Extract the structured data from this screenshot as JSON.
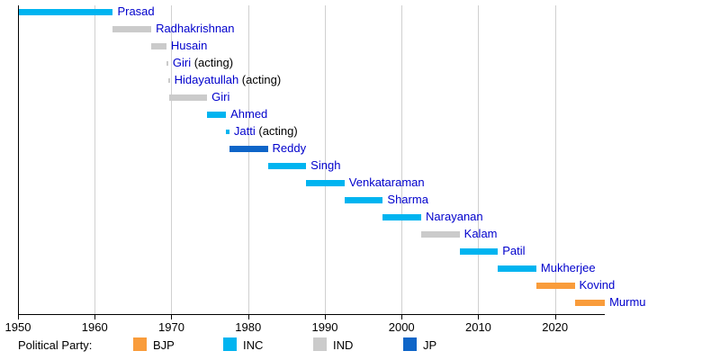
{
  "chart_data": {
    "type": "gantt-timeline",
    "description": "Timeline of term bars with names, colored by political party",
    "x_axis": {
      "min": 1950,
      "max": 2026.5,
      "ticks": [
        1950,
        1960,
        1970,
        1980,
        1990,
        2000,
        2010,
        2020
      ],
      "grid": true
    },
    "party_colors": {
      "BJP": "#f99c3b",
      "INC": "#00b4f0",
      "IND": "#cbcbcb",
      "JP": "#0e65c8"
    },
    "bars": [
      {
        "label": "Prasad",
        "suffix": "",
        "party": "INC",
        "start": 1950.07,
        "end": 1962.37
      },
      {
        "label": "Radhakrishnan",
        "suffix": "",
        "party": "IND",
        "start": 1962.37,
        "end": 1967.37
      },
      {
        "label": "Husain",
        "suffix": "",
        "party": "IND",
        "start": 1967.37,
        "end": 1969.34
      },
      {
        "label": "Giri",
        "suffix": " (acting)",
        "party": "IND",
        "start": 1969.34,
        "end": 1969.55
      },
      {
        "label": "Hidayatullah",
        "suffix": " (acting)",
        "party": "IND",
        "start": 1969.55,
        "end": 1969.65
      },
      {
        "label": "Giri",
        "suffix": "",
        "party": "IND",
        "start": 1969.65,
        "end": 1974.65
      },
      {
        "label": "Ahmed",
        "suffix": "",
        "party": "INC",
        "start": 1974.65,
        "end": 1977.11
      },
      {
        "label": "Jatti",
        "suffix": " (acting)",
        "party": "INC",
        "start": 1977.11,
        "end": 1977.56
      },
      {
        "label": "Reddy",
        "suffix": "",
        "party": "JP",
        "start": 1977.56,
        "end": 1982.56
      },
      {
        "label": "Singh",
        "suffix": "",
        "party": "INC",
        "start": 1982.56,
        "end": 1987.56
      },
      {
        "label": "Venkataraman",
        "suffix": "",
        "party": "INC",
        "start": 1987.56,
        "end": 1992.56
      },
      {
        "label": "Sharma",
        "suffix": "",
        "party": "INC",
        "start": 1992.56,
        "end": 1997.56
      },
      {
        "label": "Narayanan",
        "suffix": "",
        "party": "INC",
        "start": 1997.56,
        "end": 2002.56
      },
      {
        "label": "Kalam",
        "suffix": "",
        "party": "IND",
        "start": 2002.56,
        "end": 2007.56
      },
      {
        "label": "Patil",
        "suffix": "",
        "party": "INC",
        "start": 2007.56,
        "end": 2012.56
      },
      {
        "label": "Mukherjee",
        "suffix": "",
        "party": "INC",
        "start": 2012.56,
        "end": 2017.56
      },
      {
        "label": "Kovind",
        "suffix": "",
        "party": "BJP",
        "start": 2017.56,
        "end": 2022.56
      },
      {
        "label": "Murmu",
        "suffix": "",
        "party": "BJP",
        "start": 2022.56,
        "end": 2026.5
      }
    ],
    "legend": {
      "title": "Political Party:",
      "entries": [
        {
          "label": "BJP",
          "color": "#f99c3b"
        },
        {
          "label": "INC",
          "color": "#00b4f0"
        },
        {
          "label": "IND",
          "color": "#cbcbcb"
        },
        {
          "label": "JP",
          "color": "#0e65c8"
        }
      ]
    },
    "text_colors": {
      "bar_name": "#0000cc",
      "bar_suffix": "#000000",
      "axis": "#000000"
    }
  }
}
